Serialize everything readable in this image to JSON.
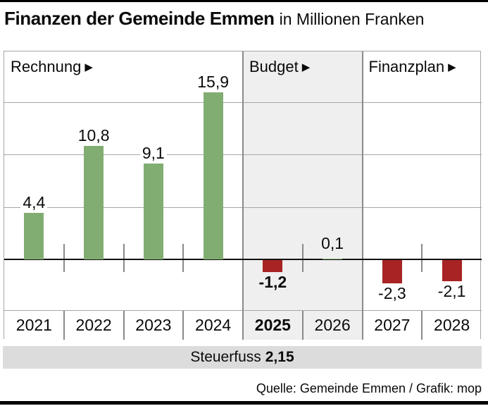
{
  "title": {
    "main": "Finanzen der Gemeinde Emmen",
    "subtitle": "in Millionen Franken"
  },
  "footer_band": {
    "label": "Steuerfuss",
    "value": "2,15"
  },
  "source_line": "Quelle: Gemeinde Emmen / Grafik: mop",
  "colors": {
    "positive_bar": "#82ad72",
    "negative_bar": "#a82323",
    "budget_shading": "#efefef",
    "steuerfuss_band": "#dcdcdc",
    "grid": "#a6a6a6",
    "divider": "#8a8a8a",
    "zero_line": "#111111"
  },
  "chart_data": {
    "type": "bar",
    "title": "Finanzen der Gemeinde Emmen",
    "ylabel": "Millionen Franken",
    "categories": [
      "2021",
      "2022",
      "2023",
      "2024",
      "2025",
      "2026",
      "2027",
      "2028"
    ],
    "values": [
      4.4,
      10.8,
      9.1,
      15.9,
      -1.2,
      0.1,
      -2.3,
      -2.1
    ],
    "value_labels": [
      "4,4",
      "10,8",
      "9,1",
      "15,9",
      "-1,2",
      "0,1",
      "-2,3",
      "-2,1"
    ],
    "emphasized_category": "2025",
    "ylim": [
      -5,
      20
    ],
    "gridline_values": [
      5,
      10,
      15
    ],
    "grid": true,
    "legend_position": "none",
    "sections": [
      {
        "label": "Rechnung",
        "arrow": "▶",
        "start": 0,
        "end": 4,
        "shaded": false
      },
      {
        "label": "Budget",
        "arrow": "▶",
        "start": 4,
        "end": 6,
        "shaded": true
      },
      {
        "label": "Finanzplan",
        "arrow": "▶",
        "start": 6,
        "end": 8,
        "shaded": false
      }
    ]
  }
}
